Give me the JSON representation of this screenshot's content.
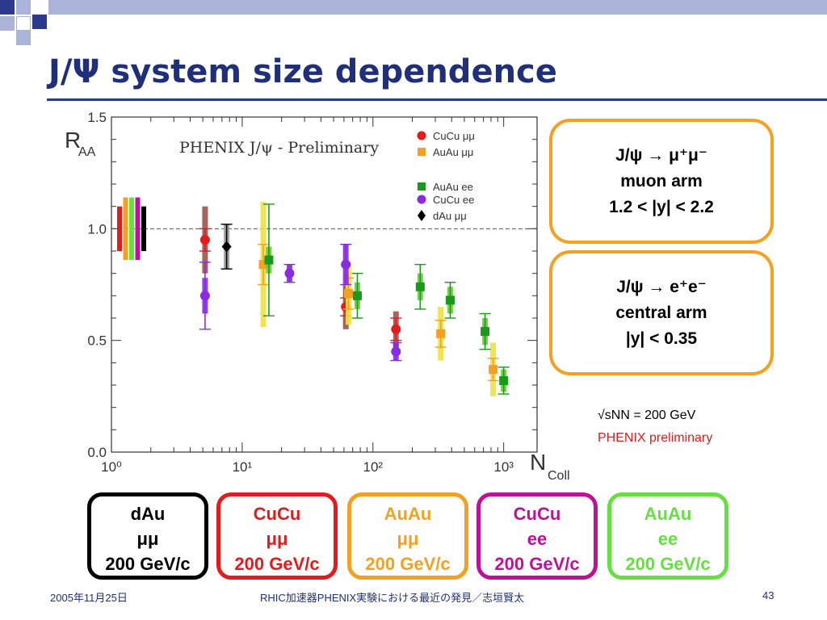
{
  "slide": {
    "title": "J/Ψ system size dependence",
    "footer_left": "2005年11月25日",
    "footer_center": "RHIC加速器PHENIX実験における最近の発見／志垣賢太",
    "page_number": "43",
    "accent_color": "#2b3a8c"
  },
  "boxes": {
    "muon": {
      "lines": [
        "J/ψ → μ⁺μ⁻",
        "muon arm",
        "1.2 < |y| < 2.2"
      ],
      "color": "#f4a020"
    },
    "central": {
      "lines": [
        "J/ψ → e⁺e⁻",
        "central arm",
        "|y| < 0.35"
      ],
      "color": "#f4a020"
    },
    "sqrt_s": "√sNN = 200 GeV",
    "preliminary": "PHENIX preliminary"
  },
  "systems": [
    {
      "name": "dAu",
      "channel": "μμ",
      "energy": "200 GeV/c",
      "color": "#000000"
    },
    {
      "name": "CuCu",
      "channel": "μμ",
      "energy": "200 GeV/c",
      "color": "#e41a1c"
    },
    {
      "name": "AuAu",
      "channel": "μμ",
      "energy": "200 GeV/c",
      "color": "#f4a020"
    },
    {
      "name": "CuCu",
      "channel": "ee",
      "energy": "200 GeV/c",
      "color": "#c0109a"
    },
    {
      "name": "AuAu",
      "channel": "ee",
      "energy": "200 GeV/c",
      "color": "#66e040"
    }
  ],
  "chart_data": {
    "type": "scatter",
    "title": "PHENIX J/ψ - Preliminary",
    "xlabel": "NColl",
    "ylabel": "RAA",
    "xscale": "log",
    "xlim": [
      1,
      1800
    ],
    "ylim": [
      0,
      1.5
    ],
    "yticks": [
      "0.0",
      "0.5",
      "1.0",
      "1.5"
    ],
    "xticks": [
      "10⁰",
      "10¹",
      "10²",
      "10³"
    ],
    "reference_line": 1.0,
    "legend_position": "top-right",
    "series": [
      {
        "name": "CuCu μμ",
        "color": "#e41a1c",
        "marker": "circle",
        "sys_color": "#a0524a",
        "points": [
          {
            "x": 5.2,
            "y": 0.95,
            "err": 0.05,
            "sys": 0.15
          },
          {
            "x": 62,
            "y": 0.65,
            "err": 0.04,
            "sys": 0.1
          },
          {
            "x": 150,
            "y": 0.55,
            "err": 0.05,
            "sys": 0.08
          }
        ]
      },
      {
        "name": "AuAu μμ",
        "color": "#f4a020",
        "marker": "square",
        "sys_color": "#f0e040",
        "points": [
          {
            "x": 14.5,
            "y": 0.84,
            "err": 0.09,
            "sys": 0.28
          },
          {
            "x": 65,
            "y": 0.71,
            "err": 0.07,
            "sys": 0.14
          },
          {
            "x": 330,
            "y": 0.53,
            "err": 0.06,
            "sys": 0.12
          },
          {
            "x": 830,
            "y": 0.37,
            "err": 0.05,
            "sys": 0.12
          }
        ]
      },
      {
        "name": "AuAu ee",
        "color": "#1a9a1a",
        "marker": "square",
        "sys_color": "#66cc33",
        "points": [
          {
            "x": 16,
            "y": 0.86,
            "err": 0.25,
            "sys": 0.06
          },
          {
            "x": 76,
            "y": 0.7,
            "err": 0.1,
            "sys": 0.06
          },
          {
            "x": 230,
            "y": 0.74,
            "err": 0.1,
            "sys": 0.06
          },
          {
            "x": 390,
            "y": 0.68,
            "err": 0.08,
            "sys": 0.06
          },
          {
            "x": 720,
            "y": 0.54,
            "err": 0.08,
            "sys": 0.06
          },
          {
            "x": 1000,
            "y": 0.32,
            "err": 0.06,
            "sys": 0.05
          }
        ]
      },
      {
        "name": "CuCu ee",
        "color": "#8a2be2",
        "marker": "circle",
        "sys_color": "#8a2be2",
        "points": [
          {
            "x": 5.2,
            "y": 0.7,
            "err": 0.15,
            "sys": 0.08
          },
          {
            "x": 23,
            "y": 0.8,
            "err": 0.04,
            "sys": 0.04
          },
          {
            "x": 62,
            "y": 0.84,
            "err": 0.09,
            "sys": 0.09
          },
          {
            "x": 150,
            "y": 0.45,
            "err": 0.04,
            "sys": 0.04
          }
        ]
      },
      {
        "name": "dAu μμ",
        "color": "#000000",
        "marker": "diamond",
        "sys_color": "#999999",
        "points": [
          {
            "x": 7.6,
            "y": 0.92,
            "err": 0.1,
            "sys": 0.1
          }
        ]
      }
    ],
    "global_uncertainty_bars": [
      {
        "color": "#e41a1c",
        "low": 0.9,
        "high": 1.1
      },
      {
        "color": "#f4a020",
        "low": 0.86,
        "high": 1.14
      },
      {
        "color": "#66e040",
        "low": 0.86,
        "high": 1.14
      },
      {
        "color": "#c0109a",
        "low": 0.86,
        "high": 1.14
      },
      {
        "color": "#000000",
        "low": 0.9,
        "high": 1.1
      }
    ]
  }
}
